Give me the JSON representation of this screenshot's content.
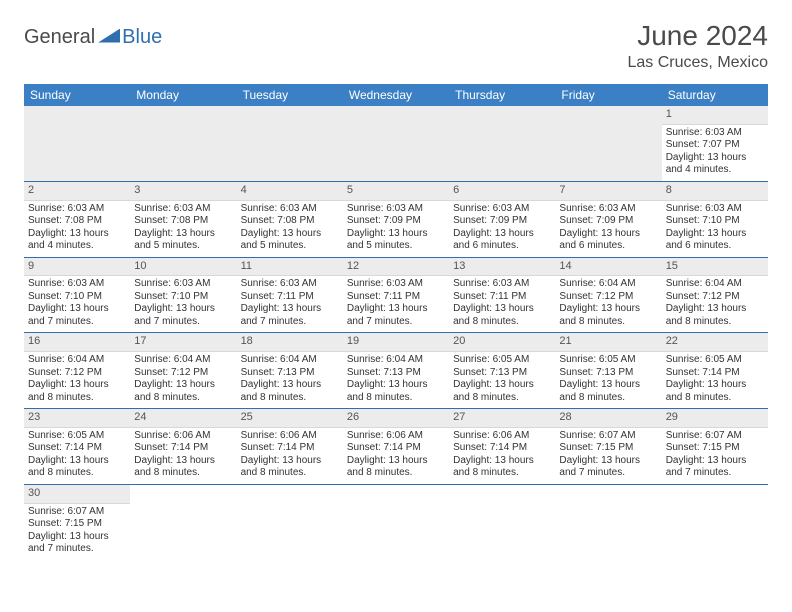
{
  "brand": {
    "part1": "General",
    "part2": "Blue"
  },
  "title": "June 2024",
  "subtitle": "Las Cruces, Mexico",
  "columns": [
    "Sunday",
    "Monday",
    "Tuesday",
    "Wednesday",
    "Thursday",
    "Friday",
    "Saturday"
  ],
  "colors": {
    "header_bg": "#3b7fc4",
    "header_fg": "#ffffff",
    "accent": "#2f6fb0",
    "daynum_bg": "#ececec",
    "text": "#333333"
  },
  "weeks": [
    [
      null,
      null,
      null,
      null,
      null,
      null,
      {
        "n": "1",
        "sr": "Sunrise: 6:03 AM",
        "ss": "Sunset: 7:07 PM",
        "d1": "Daylight: 13 hours",
        "d2": "and 4 minutes."
      }
    ],
    [
      {
        "n": "2",
        "sr": "Sunrise: 6:03 AM",
        "ss": "Sunset: 7:08 PM",
        "d1": "Daylight: 13 hours",
        "d2": "and 4 minutes."
      },
      {
        "n": "3",
        "sr": "Sunrise: 6:03 AM",
        "ss": "Sunset: 7:08 PM",
        "d1": "Daylight: 13 hours",
        "d2": "and 5 minutes."
      },
      {
        "n": "4",
        "sr": "Sunrise: 6:03 AM",
        "ss": "Sunset: 7:08 PM",
        "d1": "Daylight: 13 hours",
        "d2": "and 5 minutes."
      },
      {
        "n": "5",
        "sr": "Sunrise: 6:03 AM",
        "ss": "Sunset: 7:09 PM",
        "d1": "Daylight: 13 hours",
        "d2": "and 5 minutes."
      },
      {
        "n": "6",
        "sr": "Sunrise: 6:03 AM",
        "ss": "Sunset: 7:09 PM",
        "d1": "Daylight: 13 hours",
        "d2": "and 6 minutes."
      },
      {
        "n": "7",
        "sr": "Sunrise: 6:03 AM",
        "ss": "Sunset: 7:09 PM",
        "d1": "Daylight: 13 hours",
        "d2": "and 6 minutes."
      },
      {
        "n": "8",
        "sr": "Sunrise: 6:03 AM",
        "ss": "Sunset: 7:10 PM",
        "d1": "Daylight: 13 hours",
        "d2": "and 6 minutes."
      }
    ],
    [
      {
        "n": "9",
        "sr": "Sunrise: 6:03 AM",
        "ss": "Sunset: 7:10 PM",
        "d1": "Daylight: 13 hours",
        "d2": "and 7 minutes."
      },
      {
        "n": "10",
        "sr": "Sunrise: 6:03 AM",
        "ss": "Sunset: 7:10 PM",
        "d1": "Daylight: 13 hours",
        "d2": "and 7 minutes."
      },
      {
        "n": "11",
        "sr": "Sunrise: 6:03 AM",
        "ss": "Sunset: 7:11 PM",
        "d1": "Daylight: 13 hours",
        "d2": "and 7 minutes."
      },
      {
        "n": "12",
        "sr": "Sunrise: 6:03 AM",
        "ss": "Sunset: 7:11 PM",
        "d1": "Daylight: 13 hours",
        "d2": "and 7 minutes."
      },
      {
        "n": "13",
        "sr": "Sunrise: 6:03 AM",
        "ss": "Sunset: 7:11 PM",
        "d1": "Daylight: 13 hours",
        "d2": "and 8 minutes."
      },
      {
        "n": "14",
        "sr": "Sunrise: 6:04 AM",
        "ss": "Sunset: 7:12 PM",
        "d1": "Daylight: 13 hours",
        "d2": "and 8 minutes."
      },
      {
        "n": "15",
        "sr": "Sunrise: 6:04 AM",
        "ss": "Sunset: 7:12 PM",
        "d1": "Daylight: 13 hours",
        "d2": "and 8 minutes."
      }
    ],
    [
      {
        "n": "16",
        "sr": "Sunrise: 6:04 AM",
        "ss": "Sunset: 7:12 PM",
        "d1": "Daylight: 13 hours",
        "d2": "and 8 minutes."
      },
      {
        "n": "17",
        "sr": "Sunrise: 6:04 AM",
        "ss": "Sunset: 7:12 PM",
        "d1": "Daylight: 13 hours",
        "d2": "and 8 minutes."
      },
      {
        "n": "18",
        "sr": "Sunrise: 6:04 AM",
        "ss": "Sunset: 7:13 PM",
        "d1": "Daylight: 13 hours",
        "d2": "and 8 minutes."
      },
      {
        "n": "19",
        "sr": "Sunrise: 6:04 AM",
        "ss": "Sunset: 7:13 PM",
        "d1": "Daylight: 13 hours",
        "d2": "and 8 minutes."
      },
      {
        "n": "20",
        "sr": "Sunrise: 6:05 AM",
        "ss": "Sunset: 7:13 PM",
        "d1": "Daylight: 13 hours",
        "d2": "and 8 minutes."
      },
      {
        "n": "21",
        "sr": "Sunrise: 6:05 AM",
        "ss": "Sunset: 7:13 PM",
        "d1": "Daylight: 13 hours",
        "d2": "and 8 minutes."
      },
      {
        "n": "22",
        "sr": "Sunrise: 6:05 AM",
        "ss": "Sunset: 7:14 PM",
        "d1": "Daylight: 13 hours",
        "d2": "and 8 minutes."
      }
    ],
    [
      {
        "n": "23",
        "sr": "Sunrise: 6:05 AM",
        "ss": "Sunset: 7:14 PM",
        "d1": "Daylight: 13 hours",
        "d2": "and 8 minutes."
      },
      {
        "n": "24",
        "sr": "Sunrise: 6:06 AM",
        "ss": "Sunset: 7:14 PM",
        "d1": "Daylight: 13 hours",
        "d2": "and 8 minutes."
      },
      {
        "n": "25",
        "sr": "Sunrise: 6:06 AM",
        "ss": "Sunset: 7:14 PM",
        "d1": "Daylight: 13 hours",
        "d2": "and 8 minutes."
      },
      {
        "n": "26",
        "sr": "Sunrise: 6:06 AM",
        "ss": "Sunset: 7:14 PM",
        "d1": "Daylight: 13 hours",
        "d2": "and 8 minutes."
      },
      {
        "n": "27",
        "sr": "Sunrise: 6:06 AM",
        "ss": "Sunset: 7:14 PM",
        "d1": "Daylight: 13 hours",
        "d2": "and 8 minutes."
      },
      {
        "n": "28",
        "sr": "Sunrise: 6:07 AM",
        "ss": "Sunset: 7:15 PM",
        "d1": "Daylight: 13 hours",
        "d2": "and 7 minutes."
      },
      {
        "n": "29",
        "sr": "Sunrise: 6:07 AM",
        "ss": "Sunset: 7:15 PM",
        "d1": "Daylight: 13 hours",
        "d2": "and 7 minutes."
      }
    ],
    [
      {
        "n": "30",
        "sr": "Sunrise: 6:07 AM",
        "ss": "Sunset: 7:15 PM",
        "d1": "Daylight: 13 hours",
        "d2": "and 7 minutes."
      },
      null,
      null,
      null,
      null,
      null,
      null
    ]
  ]
}
